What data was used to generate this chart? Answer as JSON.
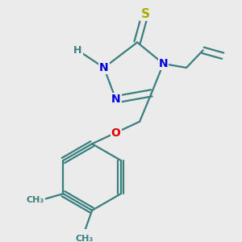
{
  "bg_color": "#ebebeb",
  "atom_colors": {
    "N": "#0000dd",
    "S": "#aaaa00",
    "O": "#dd0000",
    "C": "#3a7f7f",
    "H": "#3a7f7f",
    "CH3": "#3a7f7f"
  },
  "bond_color": "#3a7f7f",
  "bond_lw": 1.6,
  "font_size": 9
}
